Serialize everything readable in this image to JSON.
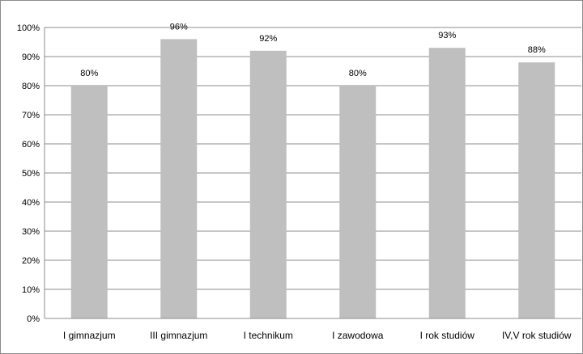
{
  "chart_data": {
    "type": "bar",
    "categories": [
      "I gimnazjum",
      "III gimnazjum",
      "I technikum",
      "I zawodowa",
      "I rok studiów",
      "IV,V rok studiów"
    ],
    "values": [
      80,
      96,
      92,
      80,
      93,
      88
    ],
    "data_labels": [
      "80%",
      "96%",
      "92%",
      "80%",
      "93%",
      "88%"
    ],
    "ylim": [
      0,
      100
    ],
    "yticks": [
      0,
      10,
      20,
      30,
      40,
      50,
      60,
      70,
      80,
      90,
      100
    ],
    "ytick_labels": [
      "0%",
      "10%",
      "20%",
      "30%",
      "40%",
      "50%",
      "60%",
      "70%",
      "80%",
      "90%",
      "100%"
    ],
    "grid": true,
    "legend": "none",
    "bar_color": "#bfbfbf",
    "grid_color": "#8c8c8c",
    "title": "",
    "xlabel": "",
    "ylabel": ""
  }
}
